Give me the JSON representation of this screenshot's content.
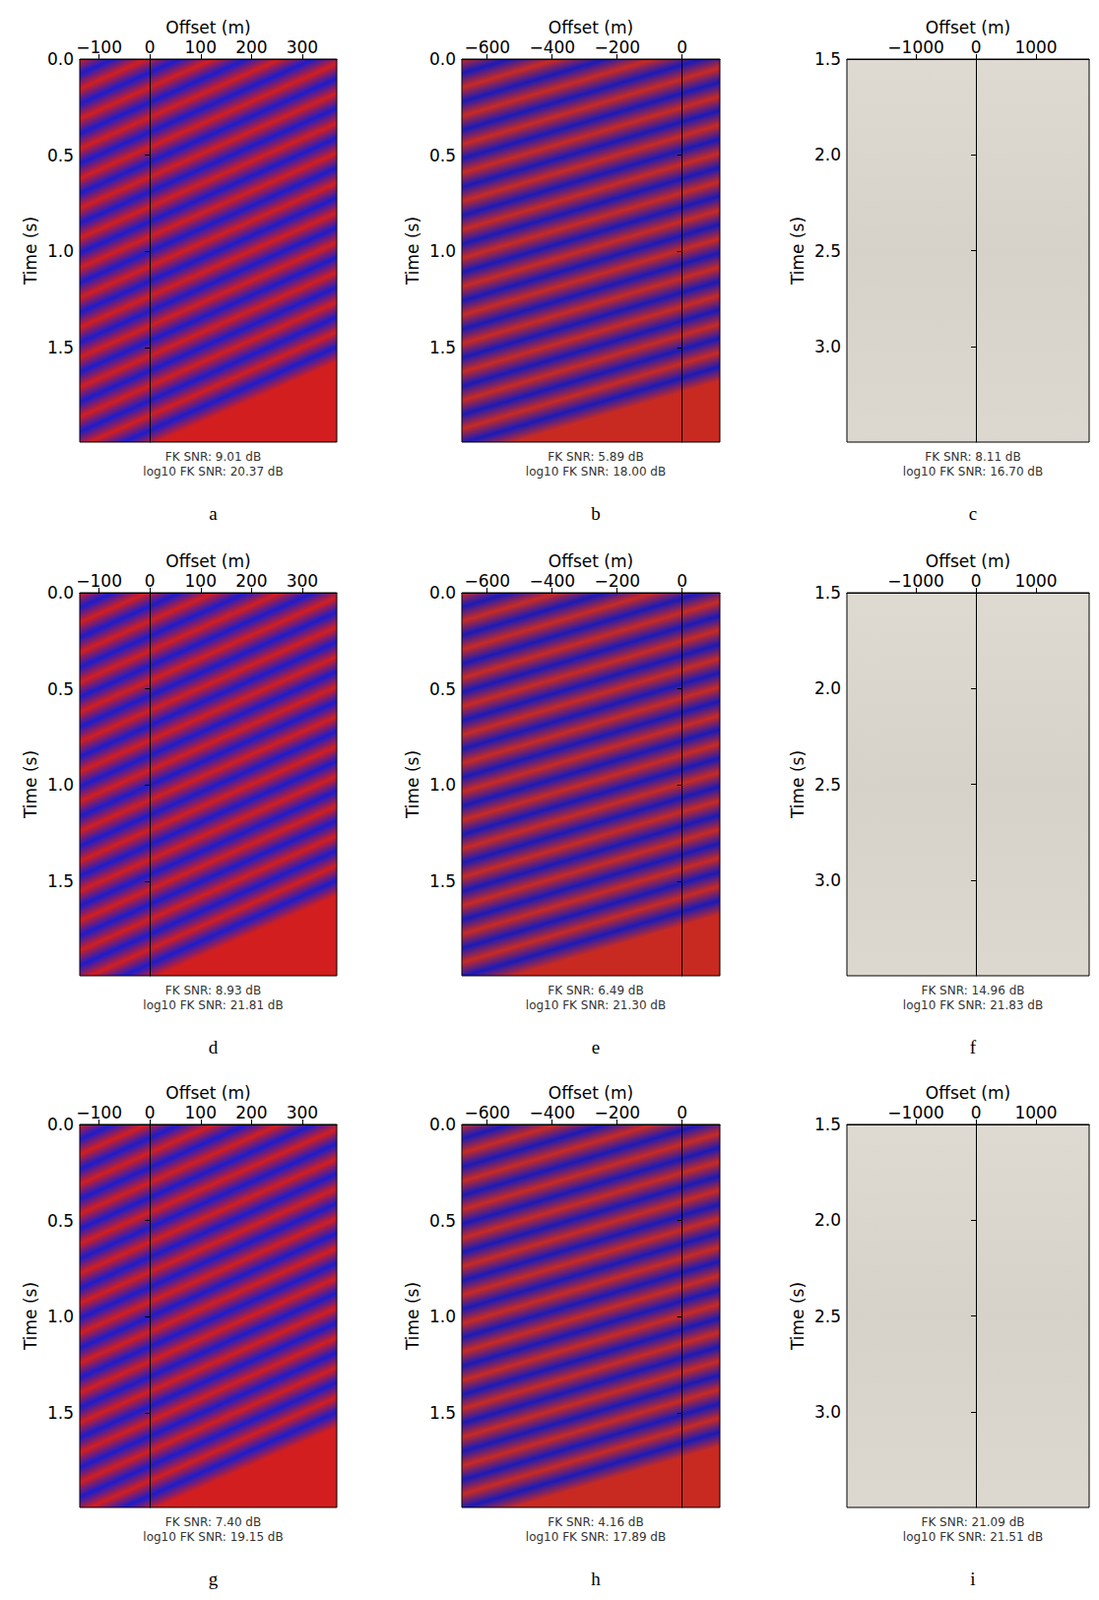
{
  "chart_data": [
    {
      "type": "image",
      "panel": "a",
      "x_label": "Offset (m)",
      "y_label": "Time (s)",
      "xlim": [
        -138,
        368
      ],
      "ylim": [
        0,
        1.99
      ],
      "xticks": [
        {
          "value": -100,
          "label": "−100"
        },
        0,
        100,
        200,
        300
      ],
      "yticks": [
        {
          "value": 0,
          "label": "0.0"
        },
        0.5,
        {
          "value": 1,
          "label": "1.0"
        },
        1.5
      ],
      "caption": [
        "FK SNR: 9.01 dB",
        "log10 FK SNR: 20.37 dB"
      ]
    },
    {
      "type": "image",
      "panel": "b",
      "x_label": "Offset (m)",
      "y_label": "Time (s)",
      "xlim": [
        -678,
        116
      ],
      "ylim": [
        0,
        1.99
      ],
      "xticks": [
        {
          "value": -600,
          "label": "−600"
        },
        {
          "value": -400,
          "label": "−400"
        },
        {
          "value": -200,
          "label": "−200"
        },
        0
      ],
      "yticks": [
        {
          "value": 0,
          "label": "0.0"
        },
        0.5,
        {
          "value": 1,
          "label": "1.0"
        },
        1.5
      ],
      "caption": [
        "FK SNR: 5.89 dB",
        "log10 FK SNR: 18.00 dB"
      ]
    },
    {
      "type": "image",
      "panel": "c",
      "x_label": "Offset (m)",
      "y_label": "Time (s)",
      "xlim": [
        -2150,
        1885
      ],
      "ylim": [
        1.5,
        3.5
      ],
      "xticks": [
        {
          "value": -1000,
          "label": "−1000"
        },
        0,
        1000
      ],
      "yticks": [
        1.5,
        {
          "value": 2,
          "label": "2.0"
        },
        2.5,
        {
          "value": 3,
          "label": "3.0"
        }
      ],
      "caption": [
        "FK SNR: 8.11 dB",
        "log10 FK SNR: 16.70 dB"
      ]
    },
    {
      "type": "image",
      "panel": "d",
      "x_label": "Offset (m)",
      "y_label": "Time (s)",
      "xlim": [
        -138,
        368
      ],
      "ylim": [
        0,
        1.99
      ],
      "xticks": [
        {
          "value": -100,
          "label": "−100"
        },
        0,
        100,
        200,
        300
      ],
      "yticks": [
        {
          "value": 0,
          "label": "0.0"
        },
        0.5,
        {
          "value": 1,
          "label": "1.0"
        },
        1.5
      ],
      "caption": [
        "FK SNR: 8.93 dB",
        "log10 FK SNR: 21.81 dB"
      ]
    },
    {
      "type": "image",
      "panel": "e",
      "x_label": "Offset (m)",
      "y_label": "Time (s)",
      "xlim": [
        -678,
        116
      ],
      "ylim": [
        0,
        1.99
      ],
      "xticks": [
        {
          "value": -600,
          "label": "−600"
        },
        {
          "value": -400,
          "label": "−400"
        },
        {
          "value": -200,
          "label": "−200"
        },
        0
      ],
      "yticks": [
        {
          "value": 0,
          "label": "0.0"
        },
        0.5,
        {
          "value": 1,
          "label": "1.0"
        },
        1.5
      ],
      "caption": [
        "FK SNR: 6.49 dB",
        "log10 FK SNR: 21.30 dB"
      ]
    },
    {
      "type": "image",
      "panel": "f",
      "x_label": "Offset (m)",
      "y_label": "Time (s)",
      "xlim": [
        -2150,
        1885
      ],
      "ylim": [
        1.5,
        3.5
      ],
      "xticks": [
        {
          "value": -1000,
          "label": "−1000"
        },
        0,
        1000
      ],
      "yticks": [
        1.5,
        {
          "value": 2,
          "label": "2.0"
        },
        2.5,
        {
          "value": 3,
          "label": "3.0"
        }
      ],
      "caption": [
        "FK SNR: 14.96 dB",
        "log10 FK SNR: 21.83 dB"
      ]
    },
    {
      "type": "image",
      "panel": "g",
      "x_label": "Offset (m)",
      "y_label": "Time (s)",
      "xlim": [
        -138,
        368
      ],
      "ylim": [
        0,
        1.99
      ],
      "xticks": [
        {
          "value": -100,
          "label": "−100"
        },
        0,
        100,
        200,
        300
      ],
      "yticks": [
        {
          "value": 0,
          "label": "0.0"
        },
        0.5,
        {
          "value": 1,
          "label": "1.0"
        },
        1.5
      ],
      "caption": [
        "FK SNR: 7.40 dB",
        "log10 FK SNR: 19.15 dB"
      ]
    },
    {
      "type": "image",
      "panel": "h",
      "x_label": "Offset (m)",
      "y_label": "Time (s)",
      "xlim": [
        -678,
        116
      ],
      "ylim": [
        0,
        1.99
      ],
      "xticks": [
        {
          "value": -600,
          "label": "−600"
        },
        {
          "value": -400,
          "label": "−400"
        },
        {
          "value": -200,
          "label": "−200"
        },
        0
      ],
      "yticks": [
        {
          "value": 0,
          "label": "0.0"
        },
        0.5,
        {
          "value": 1,
          "label": "1.0"
        },
        1.5
      ],
      "caption": [
        "FK SNR: 4.16 dB",
        "log10 FK SNR: 17.89 dB"
      ]
    },
    {
      "type": "image",
      "panel": "i",
      "x_label": "Offset (m)",
      "y_label": "Time (s)",
      "xlim": [
        -2150,
        1885
      ],
      "ylim": [
        1.5,
        3.5
      ],
      "xticks": [
        {
          "value": -1000,
          "label": "−1000"
        },
        0,
        1000
      ],
      "yticks": [
        1.5,
        {
          "value": 2,
          "label": "2.0"
        },
        2.5,
        {
          "value": 3,
          "label": "3.0"
        }
      ],
      "caption": [
        "FK SNR: 21.09 dB",
        "log10 FK SNR: 21.51 dB"
      ]
    }
  ]
}
